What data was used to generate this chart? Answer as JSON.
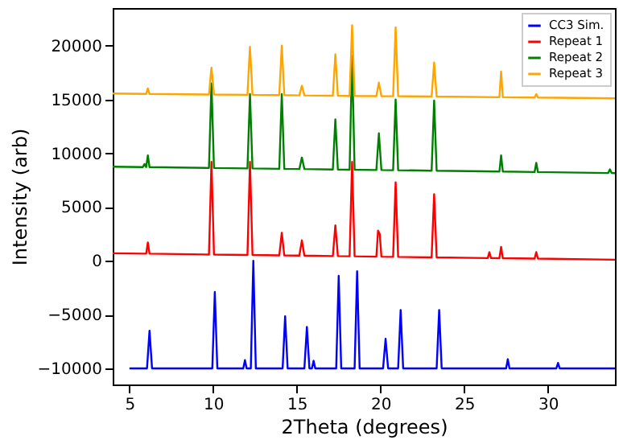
{
  "chart_data": {
    "type": "line",
    "xlabel": "2Theta (degrees)",
    "ylabel": "Intensity (arb)",
    "xlim": [
      4,
      34
    ],
    "ylim": [
      -11500,
      23500
    ],
    "xticks": [
      5,
      10,
      15,
      20,
      25,
      30
    ],
    "yticks": [
      -10000,
      -5000,
      0,
      5000,
      10000,
      15000,
      20000
    ],
    "grid": false,
    "legend": "top right",
    "series": [
      {
        "name": "CC3 Sim.",
        "color": "#0000ff",
        "x": [
          5,
          6.05,
          6.2,
          6.35,
          9.95,
          10.1,
          10.25,
          11.8,
          11.9,
          12.0,
          12.25,
          12.4,
          12.55,
          14.15,
          14.3,
          14.45,
          15.45,
          15.6,
          15.75,
          15.9,
          16.0,
          16.1,
          17.35,
          17.5,
          17.65,
          18.45,
          18.6,
          18.75,
          20.15,
          20.3,
          20.45,
          21.05,
          21.2,
          21.35,
          23.35,
          23.5,
          23.65,
          27.5,
          27.6,
          27.7,
          30.5,
          30.6,
          30.7,
          34
        ],
        "values": [
          -10000,
          -10000,
          -6500,
          -10000,
          -10000,
          -2900,
          -10000,
          -10000,
          -9240,
          -10000,
          -10000,
          0,
          -10000,
          -10000,
          -5150,
          -10000,
          -10000,
          -6150,
          -10000,
          -10000,
          -9300,
          -10000,
          -10000,
          -1400,
          -10000,
          -10000,
          -970,
          -10000,
          -10000,
          -7260,
          -10000,
          -10000,
          -4570,
          -10000,
          -10000,
          -4570,
          -10000,
          -10000,
          -9150,
          -10000,
          -10000,
          -9500,
          -10000,
          -10000
        ]
      },
      {
        "name": "Repeat 1",
        "color": "#ff0000",
        "x": [
          4,
          6.0,
          6.1,
          6.2,
          9.75,
          9.9,
          10.05,
          12.05,
          12.2,
          12.35,
          13.95,
          14.1,
          14.25,
          15.15,
          15.3,
          15.45,
          17.15,
          17.3,
          17.45,
          18.15,
          18.3,
          18.45,
          19.75,
          19.85,
          19.95,
          20.05,
          20.75,
          20.9,
          21.05,
          23.05,
          23.2,
          23.35,
          26.4,
          26.5,
          26.6,
          27.1,
          27.2,
          27.3,
          29.2,
          29.3,
          29.4,
          34
        ],
        "values": [
          700,
          660,
          1700,
          660,
          580,
          9200,
          580,
          540,
          9200,
          540,
          500,
          2600,
          500,
          480,
          1900,
          480,
          440,
          3300,
          440,
          420,
          9200,
          420,
          380,
          2800,
          2500,
          380,
          360,
          7300,
          360,
          320,
          6200,
          320,
          250,
          800,
          250,
          240,
          1300,
          240,
          200,
          800,
          200,
          100
        ]
      },
      {
        "name": "Repeat 2",
        "color": "#008000",
        "x": [
          4,
          5.8,
          5.9,
          6.0,
          6.1,
          6.2,
          9.75,
          9.9,
          10.05,
          12.05,
          12.2,
          12.35,
          13.95,
          14.1,
          14.25,
          15.15,
          15.3,
          15.45,
          17.15,
          17.3,
          17.45,
          18.15,
          18.3,
          18.45,
          19.75,
          19.9,
          20.05,
          20.75,
          20.9,
          21.05,
          23.05,
          23.2,
          23.35,
          27.1,
          27.2,
          27.3,
          29.2,
          29.3,
          29.4,
          33.6,
          33.7,
          33.8,
          34
        ],
        "values": [
          8750,
          8710,
          9000,
          8710,
          9800,
          8710,
          8630,
          16500,
          8630,
          8590,
          15500,
          8590,
          8550,
          15500,
          8550,
          8530,
          9600,
          8530,
          8490,
          13150,
          8490,
          8470,
          19050,
          8470,
          8440,
          11850,
          8440,
          8420,
          15000,
          8420,
          8380,
          14900,
          8380,
          8300,
          9800,
          8300,
          8250,
          9100,
          8250,
          8160,
          8500,
          8160,
          8150
        ]
      },
      {
        "name": "Repeat 3",
        "color": "#ffa500",
        "x": [
          4,
          6.0,
          6.1,
          6.2,
          9.75,
          9.9,
          10.05,
          12.05,
          12.2,
          12.35,
          13.95,
          14.1,
          14.25,
          15.15,
          15.3,
          15.45,
          17.15,
          17.3,
          17.45,
          18.15,
          18.3,
          18.45,
          19.75,
          19.9,
          20.05,
          20.75,
          20.9,
          21.05,
          23.05,
          23.2,
          23.35,
          27.1,
          27.2,
          27.3,
          29.2,
          29.3,
          29.4,
          34
        ],
        "values": [
          15550,
          15520,
          16030,
          15520,
          15460,
          17950,
          15460,
          15430,
          19900,
          15430,
          15400,
          20000,
          15400,
          15380,
          16270,
          15380,
          15350,
          19200,
          15350,
          15330,
          21900,
          15330,
          15310,
          16560,
          15310,
          15300,
          21700,
          15300,
          15270,
          18430,
          15270,
          15210,
          17600,
          15210,
          15180,
          15500,
          15180,
          15100
        ]
      }
    ]
  }
}
